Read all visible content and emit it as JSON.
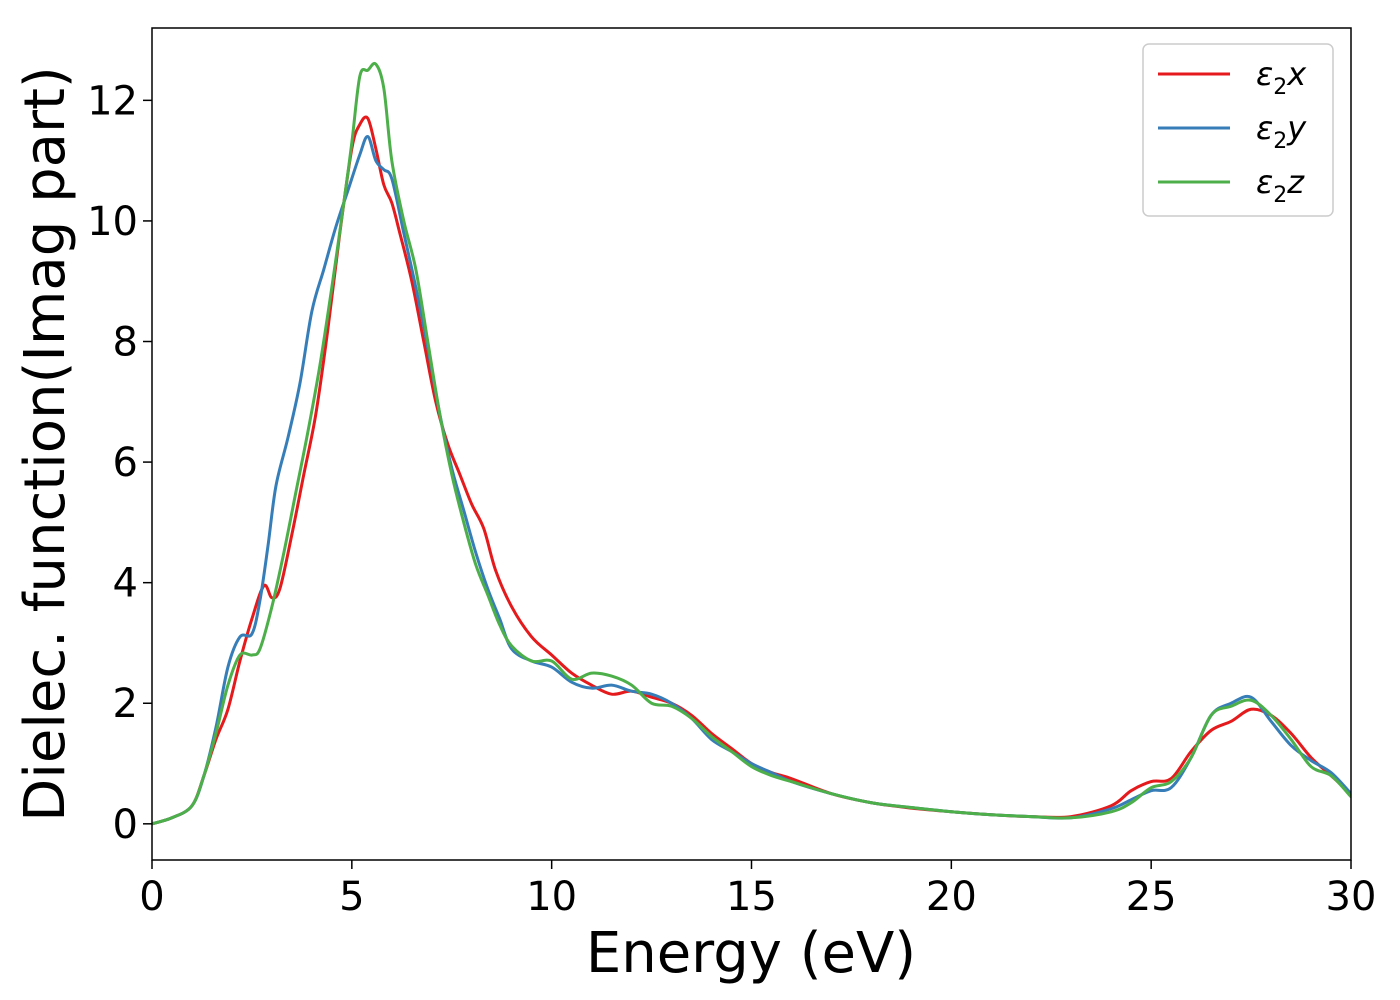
{
  "chart_data": {
    "type": "line",
    "title": "",
    "xlabel": "Energy (eV)",
    "ylabel": "Dielec. function(Imag part)",
    "xlim": [
      0,
      30
    ],
    "ylim": [
      -0.6,
      13.2
    ],
    "xticks": [
      0,
      5,
      10,
      15,
      20,
      25,
      30
    ],
    "yticks": [
      0,
      2,
      4,
      6,
      8,
      10,
      12
    ],
    "grid": false,
    "legend_position": "top-right",
    "series": [
      {
        "name": "x",
        "label_base": "ε",
        "label_sub": "2",
        "label_var": "x",
        "color": "#e41a1c",
        "x": [
          0,
          0.5,
          1.0,
          1.3,
          1.6,
          1.9,
          2.2,
          2.5,
          2.8,
          3.0,
          3.2,
          3.5,
          3.8,
          4.1,
          4.4,
          4.7,
          5.0,
          5.2,
          5.4,
          5.6,
          5.8,
          6.0,
          6.2,
          6.5,
          6.8,
          7.1,
          7.4,
          7.7,
          8.0,
          8.3,
          8.6,
          9.0,
          9.5,
          10.0,
          10.5,
          11.0,
          11.5,
          12.0,
          12.5,
          13.0,
          13.5,
          14.0,
          14.5,
          15.0,
          15.5,
          16.0,
          17.0,
          18.0,
          19.0,
          20.0,
          21.0,
          22.0,
          23.0,
          24.0,
          24.5,
          25.0,
          25.5,
          26.0,
          26.5,
          27.0,
          27.5,
          28.0,
          28.5,
          29.0,
          29.5,
          30.0
        ],
        "y": [
          0,
          0.1,
          0.3,
          0.8,
          1.4,
          1.9,
          2.7,
          3.4,
          3.95,
          3.75,
          3.9,
          4.8,
          5.8,
          6.8,
          8.2,
          9.8,
          11.2,
          11.6,
          11.7,
          11.2,
          10.6,
          10.3,
          9.8,
          9.0,
          8.0,
          7.0,
          6.3,
          5.8,
          5.3,
          4.9,
          4.2,
          3.6,
          3.1,
          2.8,
          2.5,
          2.3,
          2.15,
          2.2,
          2.1,
          2.0,
          1.8,
          1.5,
          1.25,
          1.0,
          0.85,
          0.75,
          0.5,
          0.35,
          0.26,
          0.2,
          0.15,
          0.12,
          0.12,
          0.3,
          0.55,
          0.7,
          0.75,
          1.2,
          1.55,
          1.7,
          1.9,
          1.8,
          1.5,
          1.1,
          0.8,
          0.5
        ]
      },
      {
        "name": "y",
        "label_base": "ε",
        "label_sub": "2",
        "label_var": "y",
        "color": "#377eb8",
        "x": [
          0,
          0.5,
          1.0,
          1.3,
          1.6,
          1.9,
          2.2,
          2.5,
          2.7,
          2.9,
          3.1,
          3.4,
          3.7,
          4.0,
          4.3,
          4.6,
          4.9,
          5.2,
          5.4,
          5.6,
          5.8,
          6.0,
          6.3,
          6.6,
          6.9,
          7.2,
          7.5,
          7.8,
          8.1,
          8.4,
          8.7,
          9.0,
          9.5,
          10.0,
          10.5,
          11.0,
          11.5,
          12.0,
          12.5,
          13.0,
          13.5,
          14.0,
          14.5,
          15.0,
          15.5,
          16.0,
          17.0,
          18.0,
          19.0,
          20.0,
          21.0,
          22.0,
          23.0,
          24.0,
          24.5,
          25.0,
          25.5,
          26.0,
          26.5,
          27.0,
          27.5,
          28.0,
          28.5,
          29.0,
          29.5,
          30.0
        ],
        "y": [
          0,
          0.1,
          0.3,
          0.8,
          1.6,
          2.6,
          3.1,
          3.15,
          3.7,
          4.6,
          5.6,
          6.4,
          7.3,
          8.5,
          9.2,
          9.9,
          10.5,
          11.1,
          11.4,
          11.0,
          10.85,
          10.7,
          9.8,
          8.9,
          7.9,
          6.8,
          5.9,
          5.2,
          4.5,
          3.9,
          3.4,
          2.9,
          2.7,
          2.6,
          2.35,
          2.25,
          2.3,
          2.2,
          2.15,
          2.0,
          1.75,
          1.4,
          1.2,
          1.0,
          0.85,
          0.7,
          0.5,
          0.35,
          0.27,
          0.2,
          0.15,
          0.12,
          0.1,
          0.25,
          0.4,
          0.55,
          0.6,
          1.1,
          1.8,
          2.0,
          2.1,
          1.7,
          1.3,
          1.05,
          0.85,
          0.5
        ]
      },
      {
        "name": "z",
        "label_base": "ε",
        "label_sub": "2",
        "label_var": "z",
        "color": "#4daf4a",
        "x": [
          0,
          0.5,
          1.0,
          1.3,
          1.6,
          1.9,
          2.2,
          2.5,
          2.7,
          3.0,
          3.3,
          3.6,
          3.9,
          4.2,
          4.5,
          4.8,
          5.0,
          5.2,
          5.4,
          5.6,
          5.8,
          6.0,
          6.3,
          6.6,
          6.9,
          7.2,
          7.5,
          7.8,
          8.1,
          8.4,
          8.7,
          9.0,
          9.5,
          10.0,
          10.5,
          11.0,
          11.5,
          12.0,
          12.5,
          13.0,
          13.5,
          14.0,
          14.5,
          15.0,
          15.5,
          16.0,
          17.0,
          18.0,
          19.0,
          20.0,
          21.0,
          22.0,
          23.0,
          24.0,
          24.5,
          25.0,
          25.5,
          26.0,
          26.5,
          27.0,
          27.5,
          28.0,
          28.5,
          29.0,
          29.5,
          30.0
        ],
        "y": [
          0,
          0.1,
          0.3,
          0.8,
          1.5,
          2.3,
          2.8,
          2.8,
          2.9,
          3.6,
          4.5,
          5.5,
          6.5,
          7.6,
          8.9,
          10.3,
          11.3,
          12.4,
          12.5,
          12.6,
          12.2,
          11.0,
          10.0,
          9.2,
          8.0,
          6.8,
          5.8,
          5.0,
          4.3,
          3.8,
          3.3,
          2.95,
          2.7,
          2.7,
          2.4,
          2.5,
          2.45,
          2.3,
          2.0,
          1.95,
          1.75,
          1.45,
          1.2,
          0.95,
          0.8,
          0.7,
          0.5,
          0.35,
          0.27,
          0.2,
          0.15,
          0.12,
          0.1,
          0.2,
          0.35,
          0.6,
          0.7,
          1.1,
          1.8,
          1.95,
          2.05,
          1.8,
          1.4,
          0.95,
          0.8,
          0.45
        ]
      }
    ]
  }
}
